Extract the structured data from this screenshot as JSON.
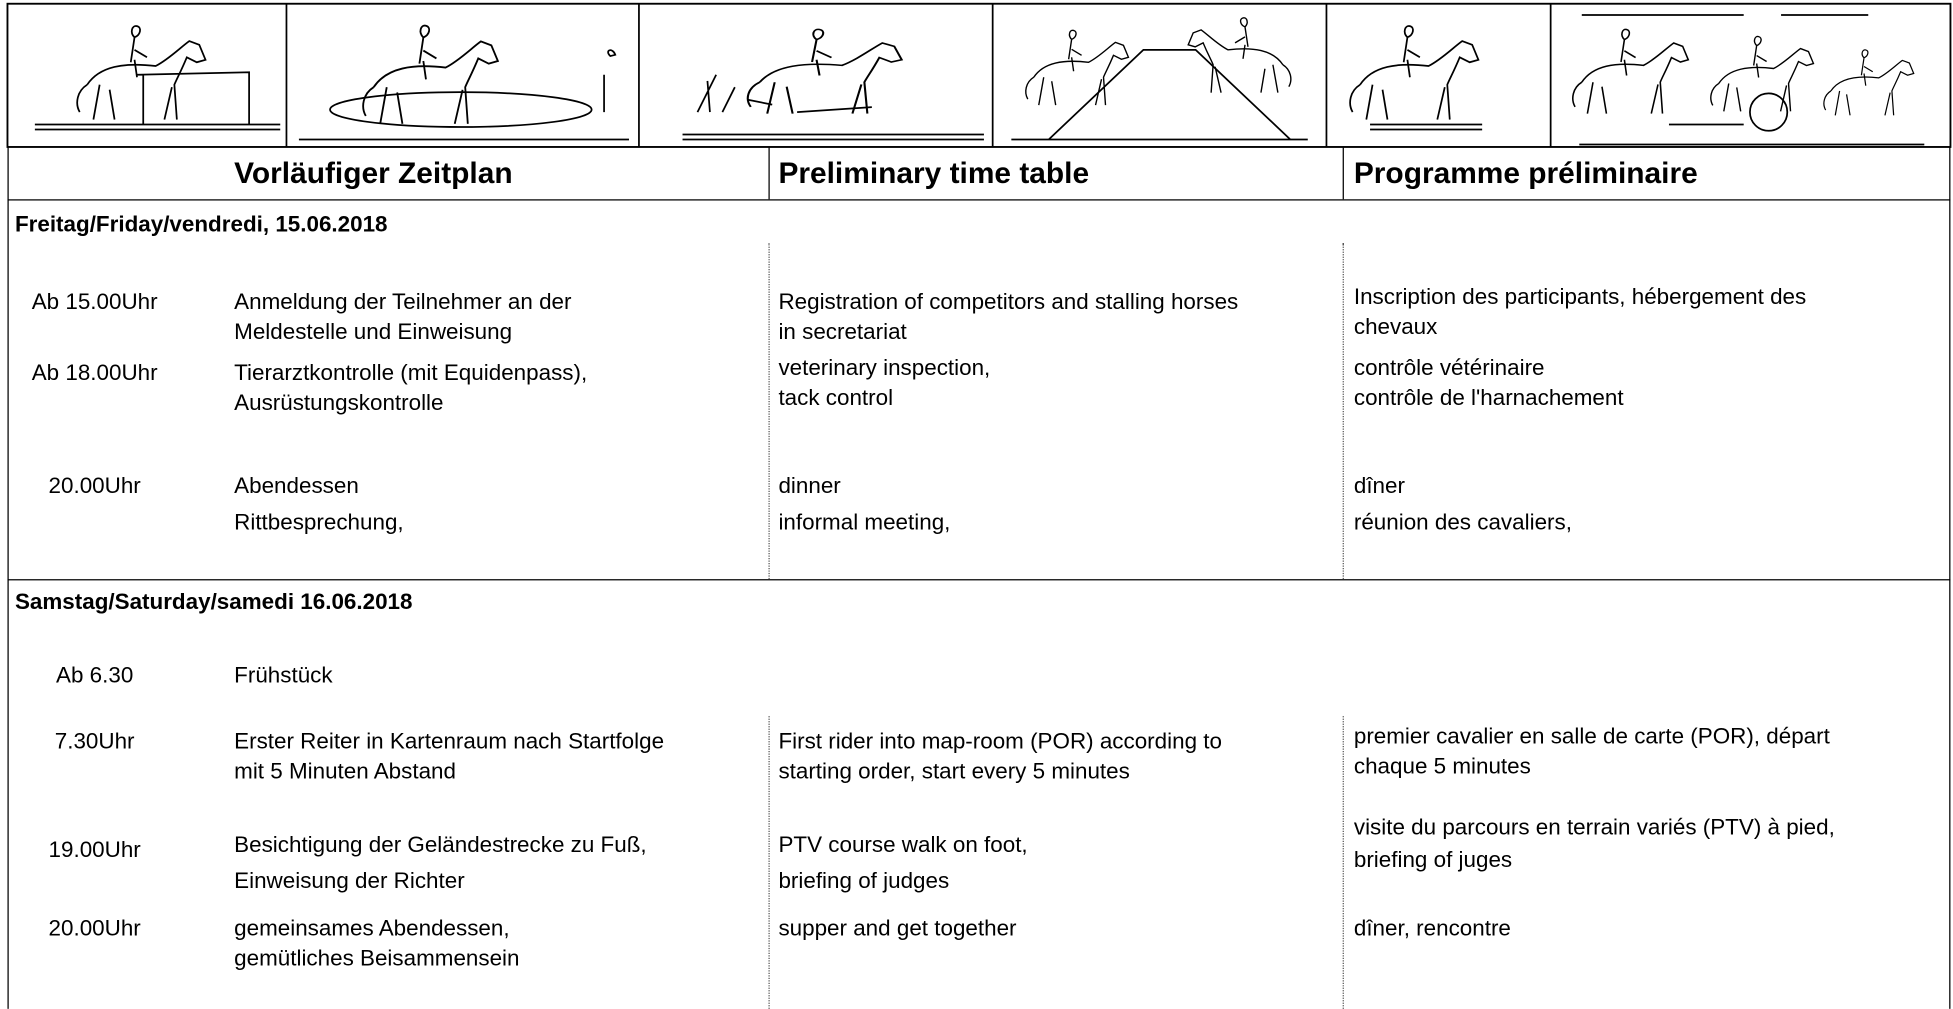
{
  "header": {
    "columns": [
      "Vorläufiger Zeitplan",
      "Preliminary time table",
      "Programme préliminaire"
    ]
  },
  "days": [
    {
      "title": "Freitag/Friday/vendredi, 15.06.2018",
      "rows": [
        {
          "time": "Ab 15.00Uhr",
          "de": [
            "Anmeldung der Teilnehmer an der",
            "Meldestelle und Einweisung"
          ],
          "en": [
            "Registration of competitors and stalling horses",
            "in secretariat"
          ],
          "fr": [
            "Inscription des participants, hébergement des",
            "chevaux"
          ]
        },
        {
          "time": "Ab 18.00Uhr",
          "de": [
            "Tierarztkontrolle (mit Equidenpass),",
            "Ausrüstungskontrolle"
          ],
          "en": [
            "veterinary inspection,",
            "tack control"
          ],
          "fr": [
            "contrôle vétérinaire",
            "contrôle de l'harnachement"
          ]
        },
        {
          "time": "20.00Uhr",
          "de": [
            "Abendessen",
            "Rittbesprechung,"
          ],
          "en": [
            "dinner",
            "informal meeting,"
          ],
          "fr": [
            "dîner",
            "réunion des cavaliers,"
          ]
        }
      ]
    },
    {
      "title": "Samstag/Saturday/samedi 16.06.2018",
      "rows": [
        {
          "time": "Ab 6.30",
          "de": [
            "Frühstück"
          ]
        },
        {
          "time": "7.30Uhr",
          "de": [
            "Erster Reiter in Kartenraum nach Startfolge",
            "mit 5 Minuten Abstand"
          ],
          "en": [
            "First rider into map-room (POR) according to",
            "starting order, start every 5 minutes"
          ],
          "fr": [
            "premier cavalier en salle de carte (POR), départ",
            "chaque 5 minutes"
          ]
        },
        {
          "time": "19.00Uhr",
          "de": [
            "Besichtigung der Geländestrecke zu Fuß,",
            "Einweisung der Richter"
          ],
          "en": [
            "PTV course walk on foot,",
            "briefing of judges"
          ],
          "fr": [
            "visite du parcours en terrain variés (PTV) à pied,",
            "briefing of juges"
          ]
        },
        {
          "time": "20.00Uhr",
          "de": [
            "gemeinsames Abendessen,",
            "gemütliches Beisammensein"
          ],
          "en": [
            "supper and get together"
          ],
          "fr": [
            "dîner, rencontre"
          ]
        }
      ]
    }
  ]
}
